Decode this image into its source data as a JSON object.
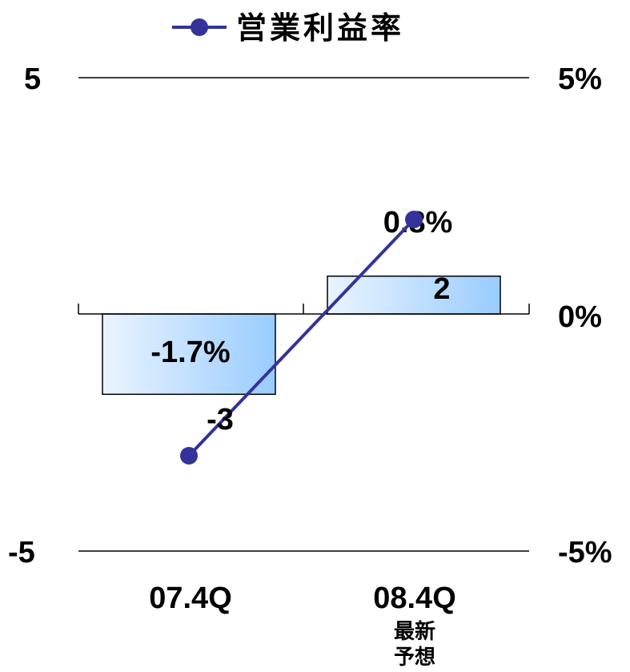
{
  "chart_data": {
    "type": "bar",
    "legend": {
      "label": "営業利益率",
      "position": "top-center",
      "line_color": "#333399"
    },
    "categories": [
      "07.4Q",
      "08.4Q"
    ],
    "category_sublabels": [
      "",
      "最新\n予想"
    ],
    "series": [
      {
        "kind": "bar",
        "values": [
          -1.7,
          0.8
        ],
        "value_labels": [
          "-1.7%",
          "0.8%"
        ],
        "axis": "right",
        "fill_from": "#eaf4ff",
        "fill_to": "#99ccff",
        "stroke": "#000000"
      },
      {
        "kind": "line",
        "name": "営業利益率",
        "values": [
          -3,
          2
        ],
        "value_labels": [
          "-3",
          "2"
        ],
        "axis": "left",
        "color": "#333399"
      }
    ],
    "left_axis": {
      "ylim": [
        -5,
        5
      ],
      "tick_labels": [
        "5",
        "-5"
      ]
    },
    "right_axis": {
      "ylim": [
        -5,
        5
      ],
      "tick_labels": [
        "5%",
        "0%",
        "-5%"
      ]
    },
    "grid": true
  }
}
